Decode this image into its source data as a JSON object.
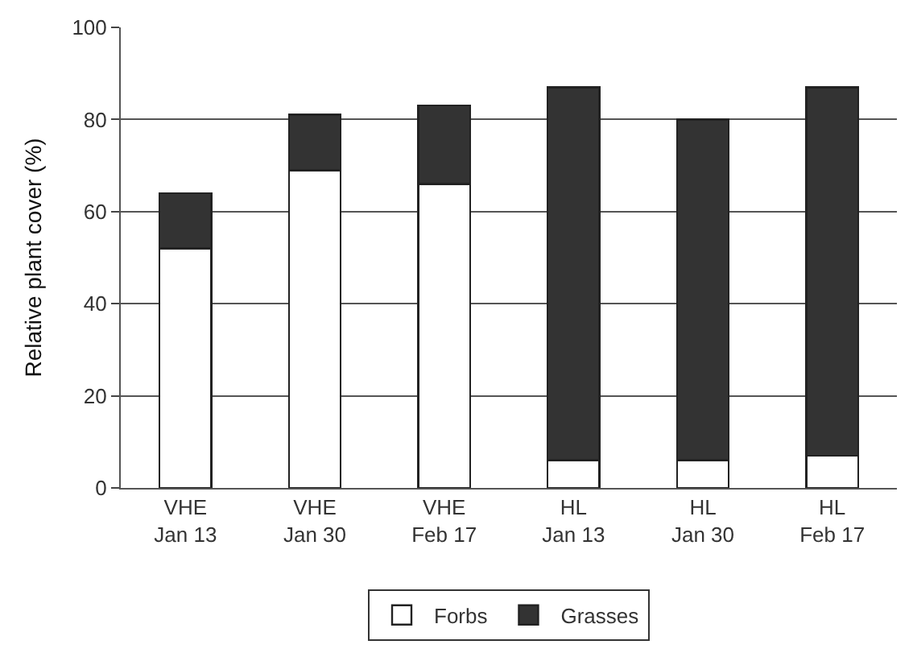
{
  "chart_data": {
    "type": "bar",
    "stacked": true,
    "ylabel": "Relative plant cover (%)",
    "categories": [
      "VHE\nJan 13",
      "VHE\nJan 30",
      "VHE\nFeb 17",
      "HL\nJan 13",
      "HL\nJan 30",
      "HL\nFeb 17"
    ],
    "series": [
      {
        "name": "Forbs",
        "color": "#ffffff",
        "values": [
          52,
          69,
          66,
          6,
          6,
          7
        ]
      },
      {
        "name": "Grasses",
        "color": "#333333",
        "values": [
          12,
          12,
          17,
          81,
          74,
          80
        ]
      }
    ],
    "ylim": [
      0,
      100
    ],
    "yticks": [
      0,
      20,
      40,
      60,
      80,
      100
    ],
    "grid": "y",
    "legend": "bottom"
  }
}
